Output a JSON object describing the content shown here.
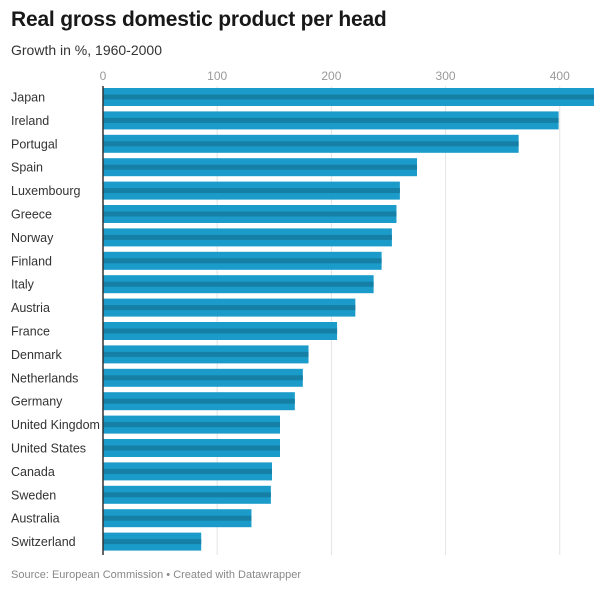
{
  "header": {
    "title": "Real gross domestic product per head",
    "subtitle": "Growth in %, 1960-2000"
  },
  "footer": {
    "source": "Source: European Commission • Created with Datawrapper"
  },
  "colors": {
    "bar": "#1a9bc9",
    "bar_stripe": "#157fa5",
    "grid": "#e4e4e4",
    "axis": "#333333"
  },
  "chart_data": {
    "type": "bar",
    "orientation": "horizontal",
    "title": "Real gross domestic product per head",
    "subtitle": "Growth in %, 1960-2000",
    "xlabel": "",
    "ylabel": "",
    "xlim": [
      0,
      430
    ],
    "ticks": [
      0,
      100,
      200,
      300,
      400
    ],
    "grid": true,
    "categories": [
      "Japan",
      "Ireland",
      "Portugal",
      "Spain",
      "Luxembourg",
      "Greece",
      "Norway",
      "Finland",
      "Italy",
      "Austria",
      "France",
      "Denmark",
      "Netherlands",
      "Germany",
      "United Kingdom",
      "United States",
      "Canada",
      "Sweden",
      "Australia",
      "Switzerland"
    ],
    "values": [
      430,
      399,
      364,
      275,
      260,
      257,
      253,
      244,
      237,
      221,
      205,
      180,
      175,
      168,
      155,
      155,
      148,
      147,
      130,
      86
    ]
  }
}
